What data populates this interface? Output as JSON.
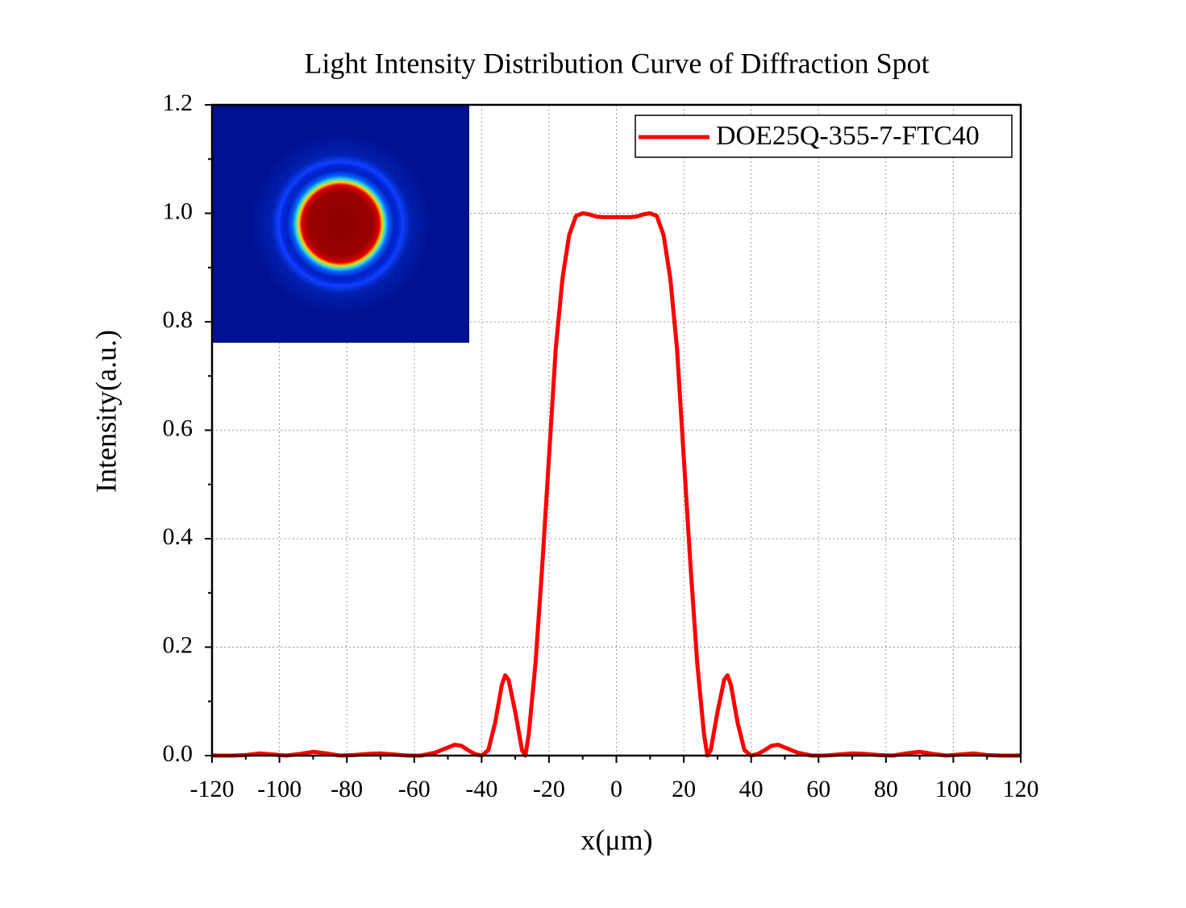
{
  "chart_data": {
    "type": "line",
    "title": "Light Intensity Distribution Curve of Diffraction Spot",
    "xlabel": "x(μm)",
    "ylabel": "Intensity(a.u.)",
    "x": [
      -120,
      -114,
      -110,
      -106,
      -102,
      -98,
      -94,
      -90,
      -86,
      -82,
      -78,
      -74,
      -70,
      -66,
      -62,
      -58,
      -54,
      -50,
      -48,
      -46,
      -44,
      -42,
      -40,
      -38,
      -36,
      -34,
      -33,
      -32,
      -30,
      -28,
      -27,
      -26,
      -24,
      -22,
      -20,
      -18,
      -16,
      -14,
      -12,
      -10,
      -8,
      -6,
      -4,
      -2,
      0,
      2,
      4,
      6,
      8,
      10,
      12,
      14,
      16,
      18,
      20,
      22,
      24,
      26,
      27,
      28,
      30,
      32,
      33,
      34,
      36,
      38,
      40,
      42,
      44,
      46,
      48,
      50,
      54,
      58,
      62,
      66,
      70,
      74,
      78,
      82,
      86,
      90,
      94,
      98,
      102,
      106,
      110,
      114,
      120
    ],
    "series": [
      {
        "name": "DOE25Q-355-7-FTC40",
        "color": "#ff0000",
        "values": [
          0,
          0,
          0.001,
          0.004,
          0.002,
          0,
          0.003,
          0.007,
          0.004,
          0,
          0.001,
          0.003,
          0.004,
          0.002,
          0,
          0,
          0.005,
          0.015,
          0.02,
          0.018,
          0.01,
          0.003,
          0,
          0.01,
          0.06,
          0.13,
          0.148,
          0.14,
          0.08,
          0.01,
          0,
          0.04,
          0.17,
          0.35,
          0.55,
          0.75,
          0.88,
          0.96,
          0.995,
          1.0,
          0.998,
          0.994,
          0.993,
          0.993,
          0.993,
          0.993,
          0.993,
          0.994,
          0.998,
          1.0,
          0.995,
          0.96,
          0.88,
          0.75,
          0.55,
          0.35,
          0.17,
          0.04,
          0,
          0.01,
          0.08,
          0.14,
          0.148,
          0.13,
          0.06,
          0.01,
          0,
          0.003,
          0.01,
          0.018,
          0.02,
          0.015,
          0.005,
          0,
          0,
          0.002,
          0.004,
          0.003,
          0.001,
          0,
          0.004,
          0.007,
          0.003,
          0,
          0.002,
          0.004,
          0.001,
          0,
          0
        ]
      }
    ],
    "xlim": [
      -120,
      120
    ],
    "xticks": [
      -120,
      -100,
      -80,
      -60,
      -40,
      -20,
      0,
      20,
      40,
      60,
      80,
      100,
      120
    ],
    "ylim": [
      0,
      1.2
    ],
    "yticks": [
      {
        "value": 0,
        "label": "0.0"
      },
      0.2,
      0.4,
      0.6,
      0.8,
      {
        "value": 1,
        "label": "1.0"
      },
      1.2
    ],
    "grid": true,
    "legend": "upper right"
  }
}
